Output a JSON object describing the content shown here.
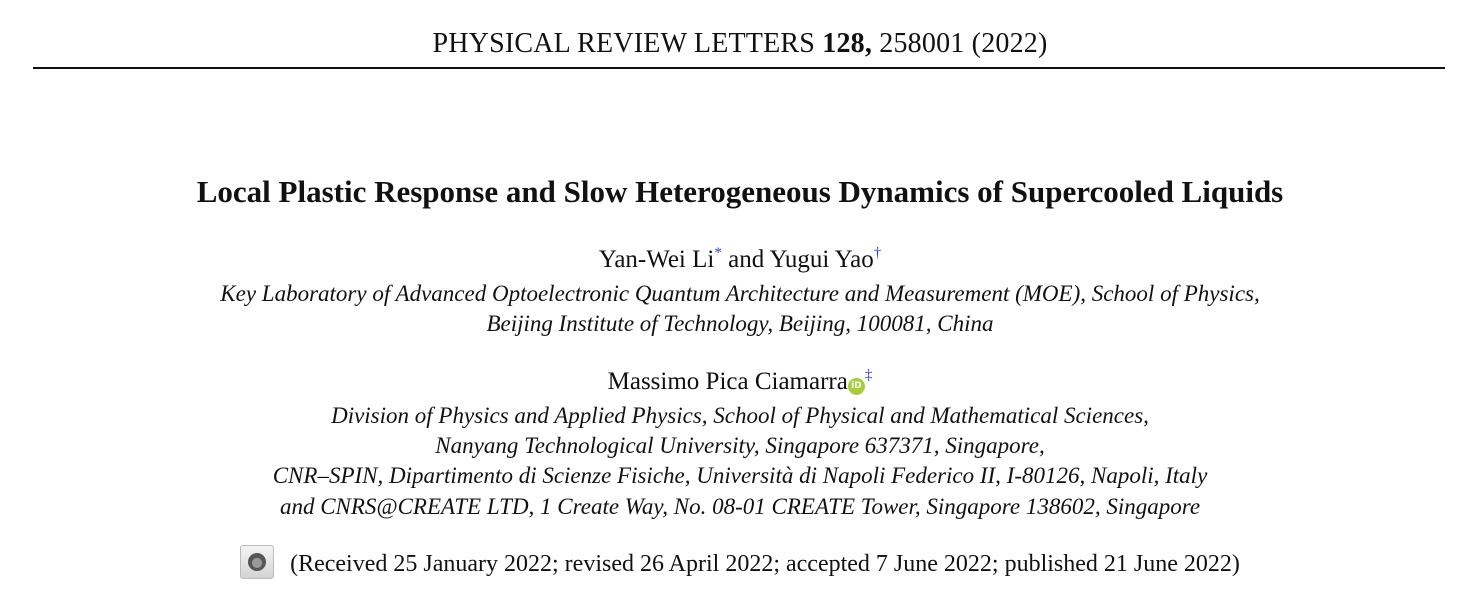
{
  "header": {
    "journal": "PHYSICAL REVIEW LETTERS",
    "volume": "128,",
    "article": "258001 (2022)"
  },
  "title": "Local Plastic Response and Slow Heterogeneous Dynamics of Supercooled Liquids",
  "authors_group1": {
    "author1": "Yan-Wei Li",
    "mark1": "*",
    "and": "and",
    "author2": "Yugui Yao",
    "mark2": "†"
  },
  "affiliation1": [
    "Key Laboratory of Advanced Optoelectronic Quantum Architecture and Measurement (MOE), School of Physics,",
    "Beijing Institute of Technology, Beijing, 100081, China"
  ],
  "authors_group2": {
    "author": "Massimo Pica Ciamarra",
    "orcid_icon": "orcid-icon",
    "orcid_label": "iD",
    "mark": "‡"
  },
  "affiliation2": [
    "Division of Physics and Applied Physics, School of Physical and Mathematical Sciences,",
    "Nanyang Technological University, Singapore 637371, Singapore,",
    "CNR–SPIN, Dipartimento di Scienze Fisiche, Università di Napoli Federico II, I-80126, Napoli, Italy",
    "and CNRS@CREATE LTD, 1 Create Way, No. 08-01 CREATE Tower, Singapore 138602, Singapore"
  ],
  "dates": {
    "icon": "check-for-updates-icon",
    "text": "(Received 25 January 2022; revised 26 April 2022; accepted 7 June 2022; published 21 June 2022)"
  },
  "colors": {
    "orcid": "#a6ce39",
    "footnote_marks": "#2a3ccf"
  }
}
